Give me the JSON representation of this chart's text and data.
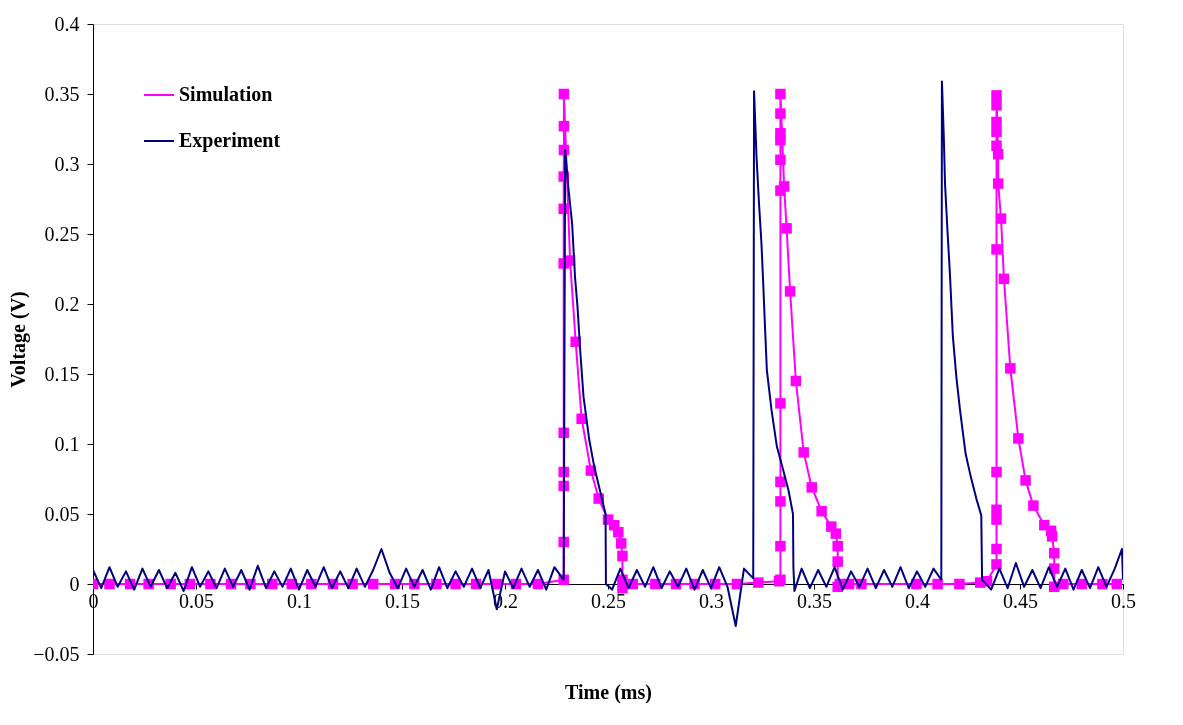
{
  "chart_data": {
    "type": "line",
    "xlabel": "Time (ms)",
    "ylabel": "Voltage (V)",
    "xlim": [
      0,
      0.5
    ],
    "ylim": [
      -0.05,
      0.4
    ],
    "xticks": [
      0,
      0.05,
      0.1,
      0.15,
      0.2,
      0.25,
      0.3,
      0.35,
      0.4,
      0.45,
      0.5
    ],
    "yticks": [
      -0.05,
      0,
      0.05,
      0.1,
      0.15,
      0.2,
      0.25,
      0.3,
      0.35,
      0.4
    ],
    "grid": false,
    "legend": "top left",
    "series": [
      {
        "name": "Simulation",
        "color": "#ff00ff",
        "marker": "square",
        "x": [
          0,
          0.008,
          0.018,
          0.027,
          0.0377,
          0.047,
          0.057,
          0.067,
          0.0764,
          0.087,
          0.0965,
          0.106,
          0.1165,
          0.126,
          0.136,
          0.1466,
          0.156,
          0.1667,
          0.176,
          0.186,
          0.196,
          0.2053,
          0.216,
          0.2285,
          0.2285,
          0.2285,
          0.2285,
          0.2285,
          0.2285,
          0.2285,
          0.2285,
          0.2286,
          0.2286,
          0.2286,
          0.2316,
          0.2343,
          0.2372,
          0.2417,
          0.2455,
          0.25,
          0.253,
          0.255,
          0.2564,
          0.257,
          0.257,
          0.257,
          0.262,
          0.273,
          0.283,
          0.292,
          0.302,
          0.3126,
          0.323,
          0.333,
          0.3337,
          0.3337,
          0.3337,
          0.3337,
          0.3337,
          0.3337,
          0.3337,
          0.3337,
          0.3337,
          0.3337,
          0.3337,
          0.3355,
          0.3367,
          0.3384,
          0.3412,
          0.345,
          0.3489,
          0.3537,
          0.3584,
          0.3606,
          0.3615,
          0.3615,
          0.3615,
          0.3625,
          0.367,
          0.373,
          0.3997,
          0.41,
          0.4206,
          0.4307,
          0.434,
          0.4386,
          0.4386,
          0.4386,
          0.4386,
          0.4386,
          0.4386,
          0.4386,
          0.4386,
          0.4386,
          0.4386,
          0.4386,
          0.4394,
          0.4394,
          0.4408,
          0.4422,
          0.4453,
          0.4492,
          0.4527,
          0.4565,
          0.4618,
          0.4651,
          0.4656,
          0.4666,
          0.4666,
          0.4666,
          0.471,
          0.48,
          0.49,
          0.497
        ],
        "values": [
          0,
          0,
          0,
          0,
          0,
          0,
          0,
          0,
          0,
          0,
          0,
          0,
          0,
          0,
          0,
          0,
          0,
          0,
          0,
          0,
          0,
          0,
          0,
          0.003,
          0.03,
          0.07,
          0.08,
          0.108,
          0.229,
          0.268,
          0.291,
          0.31,
          0.327,
          0.35,
          0.231,
          0.173,
          0.118,
          0.081,
          0.061,
          0.046,
          0.042,
          0.037,
          0.029,
          0.02,
          0.003,
          -0.003,
          0,
          0,
          0,
          0,
          0,
          0,
          0.001,
          0.002,
          0.003,
          0.027,
          0.059,
          0.073,
          0.129,
          0.281,
          0.303,
          0.317,
          0.322,
          0.336,
          0.35,
          0.284,
          0.254,
          0.209,
          0.145,
          0.094,
          0.069,
          0.052,
          0.041,
          0.036,
          0.027,
          0.016,
          -0.002,
          0,
          0,
          0,
          0,
          0,
          0,
          0.001,
          0.002,
          0.014,
          0.025,
          0.046,
          0.053,
          0.08,
          0.239,
          0.313,
          0.323,
          0.33,
          0.342,
          0.349,
          0.307,
          0.286,
          0.261,
          0.218,
          0.154,
          0.104,
          0.074,
          0.056,
          0.042,
          0.038,
          0.034,
          0.022,
          0.011,
          -0.002,
          0,
          0,
          0,
          0
        ]
      },
      {
        "name": "Experiment",
        "color": "#000080",
        "marker": "none",
        "x": [
          0,
          0.004,
          0.008,
          0.012,
          0.016,
          0.02,
          0.024,
          0.028,
          0.032,
          0.036,
          0.04,
          0.044,
          0.048,
          0.052,
          0.056,
          0.06,
          0.064,
          0.068,
          0.072,
          0.076,
          0.08,
          0.084,
          0.088,
          0.092,
          0.096,
          0.1,
          0.104,
          0.108,
          0.112,
          0.116,
          0.12,
          0.124,
          0.128,
          0.132,
          0.136,
          0.14,
          0.144,
          0.148,
          0.152,
          0.156,
          0.16,
          0.164,
          0.168,
          0.172,
          0.176,
          0.18,
          0.184,
          0.188,
          0.192,
          0.196,
          0.2,
          0.204,
          0.208,
          0.212,
          0.216,
          0.22,
          0.224,
          0.2285,
          0.2292,
          0.2307,
          0.2326,
          0.234,
          0.2352,
          0.2366,
          0.2381,
          0.2409,
          0.2433,
          0.2464,
          0.2488,
          0.249,
          0.252,
          0.256,
          0.26,
          0.264,
          0.268,
          0.272,
          0.276,
          0.28,
          0.284,
          0.288,
          0.292,
          0.296,
          0.3,
          0.304,
          0.308,
          0.312,
          0.316,
          0.3205,
          0.3209,
          0.3221,
          0.3233,
          0.3245,
          0.3254,
          0.326,
          0.3271,
          0.3294,
          0.332,
          0.3346,
          0.3376,
          0.3398,
          0.34,
          0.3405,
          0.344,
          0.348,
          0.352,
          0.356,
          0.36,
          0.364,
          0.368,
          0.372,
          0.376,
          0.38,
          0.384,
          0.388,
          0.392,
          0.396,
          0.4,
          0.404,
          0.408,
          0.4118,
          0.4121,
          0.413,
          0.4136,
          0.4148,
          0.416,
          0.4174,
          0.4191,
          0.4209,
          0.4236,
          0.4262,
          0.4288,
          0.4312,
          0.4316,
          0.436,
          0.44,
          0.444,
          0.448,
          0.452,
          0.456,
          0.46,
          0.464,
          0.468,
          0.472,
          0.476,
          0.48,
          0.484,
          0.488,
          0.492,
          0.496,
          0.4995,
          0.5
        ],
        "values": [
          0.01,
          -0.003,
          0.012,
          -0.002,
          0.009,
          -0.004,
          0.011,
          -0.002,
          0.01,
          -0.003,
          0.008,
          -0.005,
          0.012,
          -0.002,
          0.009,
          -0.003,
          0.011,
          -0.002,
          0.01,
          -0.004,
          0.013,
          -0.003,
          0.009,
          -0.002,
          0.011,
          -0.004,
          0.01,
          -0.002,
          0.012,
          -0.003,
          0.009,
          -0.003,
          0.011,
          -0.002,
          0.01,
          0.025,
          0.008,
          -0.003,
          0.011,
          -0.002,
          0.01,
          -0.004,
          0.012,
          -0.003,
          0.009,
          -0.002,
          0.011,
          -0.003,
          0.01,
          -0.018,
          0.009,
          -0.003,
          0.011,
          -0.002,
          0.01,
          -0.004,
          0.012,
          0.003,
          0.31,
          0.284,
          0.257,
          0.219,
          0.198,
          0.165,
          0.134,
          0.103,
          0.084,
          0.065,
          0.05,
          0,
          -0.004,
          0.011,
          -0.003,
          0.01,
          -0.002,
          0.012,
          -0.003,
          0.009,
          -0.002,
          0.011,
          -0.004,
          0.01,
          -0.003,
          0.012,
          -0.002,
          -0.03,
          0.011,
          0.004,
          0.352,
          0.305,
          0.272,
          0.243,
          0.213,
          0.191,
          0.153,
          0.124,
          0.098,
          0.084,
          0.067,
          0.05,
          0.012,
          -0.005,
          0.011,
          -0.003,
          0.01,
          -0.002,
          0.012,
          -0.004,
          0.009,
          -0.002,
          0.011,
          -0.003,
          0.01,
          -0.002,
          0.012,
          -0.003,
          0.009,
          -0.002,
          0.011,
          0.003,
          0.359,
          0.32,
          0.286,
          0.252,
          0.221,
          0.177,
          0.148,
          0.124,
          0.093,
          0.076,
          0.061,
          0.049,
          0.003,
          -0.004,
          0.011,
          -0.003,
          0.015,
          -0.002,
          0.01,
          -0.003,
          0.012,
          -0.002,
          0.011,
          -0.004,
          0.01,
          -0.003,
          0.012,
          -0.002,
          0.011,
          0.025,
          0.003
        ]
      }
    ]
  }
}
